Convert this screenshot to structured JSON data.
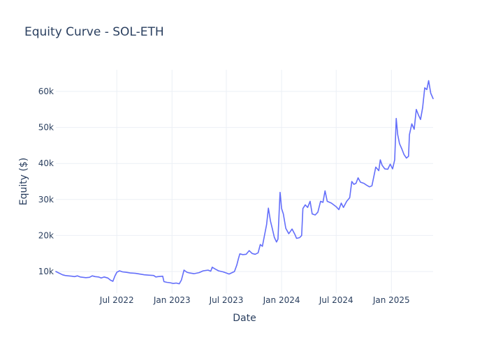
{
  "chart_data": {
    "type": "line",
    "title": "Equity Curve - SOL-ETH",
    "xlabel": "Date",
    "ylabel": "Equity ($)",
    "x_range": [
      "2021-12-10",
      "2025-05-20"
    ],
    "ylim": [
      4000,
      66000
    ],
    "x_ticks": [
      {
        "date": "2022-07-01",
        "label": "Jul 2022"
      },
      {
        "date": "2023-01-01",
        "label": "Jan 2023"
      },
      {
        "date": "2023-07-01",
        "label": "Jul 2023"
      },
      {
        "date": "2024-01-01",
        "label": "Jan 2024"
      },
      {
        "date": "2024-07-01",
        "label": "Jul 2024"
      },
      {
        "date": "2025-01-01",
        "label": "Jan 2025"
      }
    ],
    "y_ticks": [
      {
        "value": 10000,
        "label": "10k"
      },
      {
        "value": 20000,
        "label": "20k"
      },
      {
        "value": 30000,
        "label": "30k"
      },
      {
        "value": 40000,
        "label": "40k"
      },
      {
        "value": 50000,
        "label": "50k"
      },
      {
        "value": 60000,
        "label": "60k"
      }
    ],
    "grid": true,
    "series": [
      {
        "name": "",
        "color": "#636efa",
        "points": [
          [
            "2021-12-10",
            10000
          ],
          [
            "2021-12-20",
            9600
          ],
          [
            "2022-01-01",
            9100
          ],
          [
            "2022-01-10",
            8900
          ],
          [
            "2022-01-20",
            8800
          ],
          [
            "2022-02-01",
            8700
          ],
          [
            "2022-02-10",
            8600
          ],
          [
            "2022-02-20",
            8800
          ],
          [
            "2022-03-01",
            8500
          ],
          [
            "2022-03-10",
            8400
          ],
          [
            "2022-03-20",
            8300
          ],
          [
            "2022-04-01",
            8400
          ],
          [
            "2022-04-10",
            8800
          ],
          [
            "2022-04-20",
            8600
          ],
          [
            "2022-05-01",
            8500
          ],
          [
            "2022-05-10",
            8200
          ],
          [
            "2022-05-20",
            8500
          ],
          [
            "2022-06-01",
            8200
          ],
          [
            "2022-06-10",
            7600
          ],
          [
            "2022-06-18",
            7300
          ],
          [
            "2022-06-25",
            8800
          ],
          [
            "2022-07-01",
            9800
          ],
          [
            "2022-07-10",
            10200
          ],
          [
            "2022-07-20",
            9900
          ],
          [
            "2022-08-01",
            9800
          ],
          [
            "2022-08-15",
            9600
          ],
          [
            "2022-09-01",
            9500
          ],
          [
            "2022-09-15",
            9300
          ],
          [
            "2022-10-01",
            9100
          ],
          [
            "2022-10-15",
            9000
          ],
          [
            "2022-11-01",
            8900
          ],
          [
            "2022-11-08",
            8500
          ],
          [
            "2022-11-15",
            8600
          ],
          [
            "2022-12-01",
            8700
          ],
          [
            "2022-12-05",
            7200
          ],
          [
            "2022-12-15",
            7000
          ],
          [
            "2022-12-25",
            6900
          ],
          [
            "2023-01-05",
            6700
          ],
          [
            "2023-01-15",
            6800
          ],
          [
            "2023-01-25",
            6600
          ],
          [
            "2023-02-01",
            7600
          ],
          [
            "2023-02-05",
            8800
          ],
          [
            "2023-02-10",
            10400
          ],
          [
            "2023-02-20",
            9800
          ],
          [
            "2023-03-01",
            9600
          ],
          [
            "2023-03-15",
            9400
          ],
          [
            "2023-04-01",
            9700
          ],
          [
            "2023-04-15",
            10200
          ],
          [
            "2023-05-01",
            10400
          ],
          [
            "2023-05-10",
            10100
          ],
          [
            "2023-05-15",
            11200
          ],
          [
            "2023-05-25",
            10700
          ],
          [
            "2023-06-05",
            10200
          ],
          [
            "2023-06-20",
            9900
          ],
          [
            "2023-07-01",
            9600
          ],
          [
            "2023-07-10",
            9300
          ],
          [
            "2023-07-20",
            9700
          ],
          [
            "2023-07-28",
            10000
          ],
          [
            "2023-08-05",
            11800
          ],
          [
            "2023-08-10",
            13500
          ],
          [
            "2023-08-15",
            14900
          ],
          [
            "2023-08-25",
            14700
          ],
          [
            "2023-09-05",
            14800
          ],
          [
            "2023-09-15",
            15800
          ],
          [
            "2023-09-25",
            15000
          ],
          [
            "2023-10-05",
            14800
          ],
          [
            "2023-10-15",
            15200
          ],
          [
            "2023-10-22",
            17500
          ],
          [
            "2023-10-29",
            17000
          ],
          [
            "2023-11-05",
            20000
          ],
          [
            "2023-11-12",
            23000
          ],
          [
            "2023-11-18",
            27600
          ],
          [
            "2023-11-25",
            24000
          ],
          [
            "2023-12-01",
            22000
          ],
          [
            "2023-12-08",
            19500
          ],
          [
            "2023-12-15",
            18200
          ],
          [
            "2023-12-20",
            19000
          ],
          [
            "2023-12-24",
            26500
          ],
          [
            "2023-12-27",
            32000
          ],
          [
            "2024-01-01",
            27500
          ],
          [
            "2024-01-07",
            26000
          ],
          [
            "2024-01-15",
            22000
          ],
          [
            "2024-01-25",
            20500
          ],
          [
            "2024-02-05",
            21800
          ],
          [
            "2024-02-15",
            20200
          ],
          [
            "2024-02-20",
            19200
          ],
          [
            "2024-03-01",
            19400
          ],
          [
            "2024-03-08",
            20000
          ],
          [
            "2024-03-12",
            27500
          ],
          [
            "2024-03-20",
            28500
          ],
          [
            "2024-03-28",
            27800
          ],
          [
            "2024-04-05",
            29500
          ],
          [
            "2024-04-12",
            26000
          ],
          [
            "2024-04-22",
            25700
          ],
          [
            "2024-05-01",
            26500
          ],
          [
            "2024-05-10",
            29500
          ],
          [
            "2024-05-18",
            29200
          ],
          [
            "2024-05-25",
            32400
          ],
          [
            "2024-06-01",
            29500
          ],
          [
            "2024-06-15",
            29000
          ],
          [
            "2024-07-01",
            28000
          ],
          [
            "2024-07-10",
            27200
          ],
          [
            "2024-07-18",
            29000
          ],
          [
            "2024-07-25",
            27800
          ],
          [
            "2024-08-05",
            29500
          ],
          [
            "2024-08-15",
            30500
          ],
          [
            "2024-08-22",
            35000
          ],
          [
            "2024-08-29",
            34200
          ],
          [
            "2024-09-05",
            34500
          ],
          [
            "2024-09-12",
            36000
          ],
          [
            "2024-09-20",
            34800
          ],
          [
            "2024-10-01",
            34500
          ],
          [
            "2024-10-10",
            34000
          ],
          [
            "2024-10-20",
            33500
          ],
          [
            "2024-10-28",
            33800
          ],
          [
            "2024-11-05",
            37000
          ],
          [
            "2024-11-10",
            39000
          ],
          [
            "2024-11-20",
            38000
          ],
          [
            "2024-11-25",
            41000
          ],
          [
            "2024-12-01",
            39500
          ],
          [
            "2024-12-10",
            38500
          ],
          [
            "2024-12-20",
            38400
          ],
          [
            "2024-12-28",
            39800
          ],
          [
            "2025-01-05",
            38500
          ],
          [
            "2025-01-12",
            41000
          ],
          [
            "2025-01-17",
            52500
          ],
          [
            "2025-01-22",
            48000
          ],
          [
            "2025-01-28",
            45500
          ],
          [
            "2025-02-05",
            44000
          ],
          [
            "2025-02-12",
            42500
          ],
          [
            "2025-02-20",
            41500
          ],
          [
            "2025-02-27",
            42000
          ],
          [
            "2025-03-02",
            48000
          ],
          [
            "2025-03-10",
            51000
          ],
          [
            "2025-03-18",
            49500
          ],
          [
            "2025-03-25",
            55000
          ],
          [
            "2025-04-01",
            53500
          ],
          [
            "2025-04-08",
            52200
          ],
          [
            "2025-04-15",
            55500
          ],
          [
            "2025-04-22",
            61000
          ],
          [
            "2025-04-29",
            60500
          ],
          [
            "2025-05-05",
            63000
          ],
          [
            "2025-05-12",
            59500
          ],
          [
            "2025-05-20",
            58000
          ]
        ]
      }
    ]
  }
}
